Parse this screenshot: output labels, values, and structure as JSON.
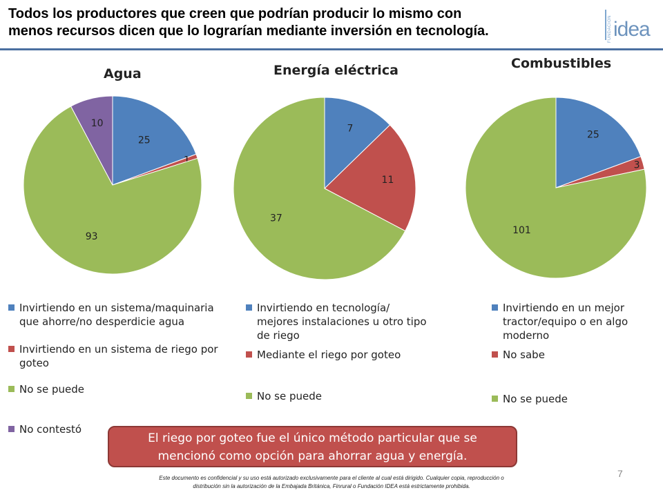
{
  "header": {
    "title_lines": [
      "Todos los productores que creen que podrían producir lo mismo con",
      "menos recursos dicen que lo lograrían mediante inversión en tecnología."
    ],
    "logo": {
      "small_text": "FUNDACIÓN",
      "word": "idea"
    }
  },
  "colors": {
    "blue": "#4f81bd",
    "red": "#c0504d",
    "green": "#9bbb59",
    "purple": "#8064a2",
    "rule": "#4a6fa0"
  },
  "chart_data": [
    {
      "type": "pie",
      "title": "Agua",
      "slices": [
        {
          "label": "Invirtiendo en un sistema/maquinaria que ahorre/no desperdicie agua",
          "value": 25,
          "color": "#4f81bd"
        },
        {
          "label": "Invirtiendo en un sistema de riego por goteo",
          "value": 1,
          "color": "#c0504d"
        },
        {
          "label": "No se puede",
          "value": 93,
          "color": "#9bbb59"
        },
        {
          "label": "No contestó",
          "value": 10,
          "color": "#8064a2"
        }
      ]
    },
    {
      "type": "pie",
      "title": "Energía eléctrica",
      "slices": [
        {
          "label": "Invirtiendo en tecnología/ mejores instalaciones u otro tipo de riego",
          "value": 7,
          "color": "#4f81bd"
        },
        {
          "label": "Mediante el riego por goteo",
          "value": 11,
          "color": "#c0504d"
        },
        {
          "label": "No se puede",
          "value": 37,
          "color": "#9bbb59"
        }
      ]
    },
    {
      "type": "pie",
      "title": "Combustibles",
      "slices": [
        {
          "label": "Invirtiendo en un mejor tractor/equipo o en algo moderno",
          "value": 25,
          "color": "#4f81bd"
        },
        {
          "label": "No sabe",
          "value": 3,
          "color": "#c0504d"
        },
        {
          "label": "No se puede",
          "value": 101,
          "color": "#9bbb59"
        }
      ]
    }
  ],
  "legends": [
    [
      {
        "lines": [
          "Invirtiendo en un sistema/maquinaria",
          "que ahorre/no desperdicie agua"
        ]
      },
      {
        "lines": [
          "Invirtiendo en un sistema de riego por",
          "goteo"
        ]
      },
      {
        "lines": [
          "No se puede"
        ]
      },
      {
        "lines": [
          "No contestó"
        ]
      }
    ],
    [
      {
        "lines": [
          "Invirtiendo en tecnología/",
          "mejores instalaciones u otro tipo",
          "de riego"
        ]
      },
      {
        "lines": [
          "Mediante el riego por goteo"
        ]
      },
      {
        "lines": [
          "No se puede"
        ]
      }
    ],
    [
      {
        "lines": [
          "Invirtiendo en un mejor",
          "tractor/equipo o en algo",
          "moderno"
        ]
      },
      {
        "lines": [
          "No sabe"
        ]
      },
      {
        "lines": [
          "No se puede"
        ]
      }
    ]
  ],
  "callout": {
    "lines": [
      "El riego por goteo fue el único método particular que se",
      "mencionó como opción para ahorrar agua y energía."
    ]
  },
  "page_number": "7",
  "footer": {
    "lines": [
      "Este documento es confidencial y su uso está autorizado exclusivamente para el cliente al cual está dirigido. Cualquier copia, reproducción o",
      "distribución sin la autorización de la Embajada Británica, Finrural o Fundación IDEA está estrictamente prohibida."
    ]
  }
}
